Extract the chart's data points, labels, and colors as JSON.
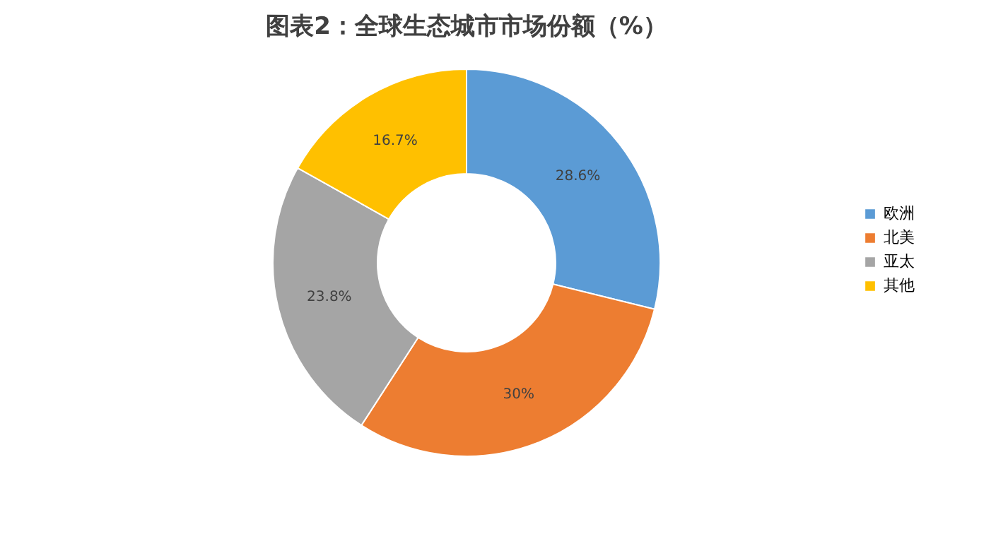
{
  "chart_data": {
    "type": "donut",
    "title": "图表2：全球生态城市市场份额（%）",
    "categories": [
      "欧洲",
      "北美",
      "亚太",
      "其他"
    ],
    "values": [
      28.6,
      30,
      23.8,
      16.7
    ],
    "colors": [
      "#5b9bd5",
      "#ed7d31",
      "#a5a5a5",
      "#ffc000"
    ],
    "value_labels": [
      "28.6%",
      "30%",
      "23.8%",
      "16.7%"
    ],
    "legend": "right"
  }
}
